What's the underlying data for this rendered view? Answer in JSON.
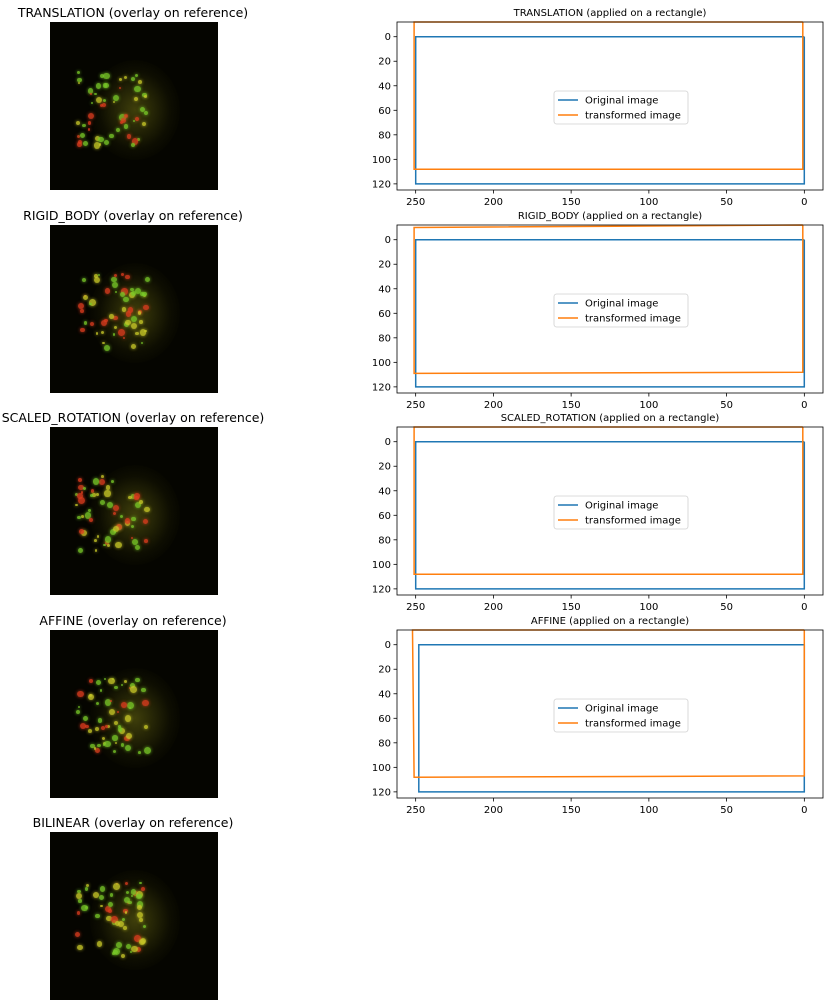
{
  "colors": {
    "original": "#1f77b4",
    "transformed": "#ff7f0e",
    "image_bg": "#050500"
  },
  "legend": {
    "original": "Original image",
    "transformed": "transformed image"
  },
  "image_panels": [
    {
      "title": "TRANSLATION (overlay on reference)"
    },
    {
      "title": "RIGID_BODY (overlay on reference)"
    },
    {
      "title": "SCALED_ROTATION (overlay on reference)"
    },
    {
      "title": "AFFINE (overlay on reference)"
    },
    {
      "title": "BILINEAR (overlay on reference)"
    }
  ],
  "chart_data": [
    {
      "type": "line",
      "title": "TRANSLATION (applied on a rectangle)",
      "x_inverted": true,
      "y_inverted": true,
      "xlim": [
        262,
        -12
      ],
      "ylim": [
        125,
        -12
      ],
      "xticks": [
        250,
        200,
        150,
        100,
        50,
        0
      ],
      "yticks": [
        0,
        20,
        40,
        60,
        80,
        100,
        120
      ],
      "legend_position": "center",
      "series": [
        {
          "name": "Original image",
          "points": [
            [
              0,
              0
            ],
            [
              250,
              0
            ],
            [
              250,
              120
            ],
            [
              0,
              120
            ],
            [
              0,
              0
            ]
          ]
        },
        {
          "name": "transformed image",
          "points": [
            [
              1,
              -12
            ],
            [
              251,
              -12
            ],
            [
              251,
              108
            ],
            [
              1,
              108
            ],
            [
              1,
              -12
            ]
          ]
        }
      ]
    },
    {
      "type": "line",
      "title": "RIGID_BODY (applied on a rectangle)",
      "x_inverted": true,
      "y_inverted": true,
      "xlim": [
        262,
        -12
      ],
      "ylim": [
        125,
        -12
      ],
      "xticks": [
        250,
        200,
        150,
        100,
        50,
        0
      ],
      "yticks": [
        0,
        20,
        40,
        60,
        80,
        100,
        120
      ],
      "legend_position": "center",
      "series": [
        {
          "name": "Original image",
          "points": [
            [
              0,
              0
            ],
            [
              250,
              0
            ],
            [
              250,
              120
            ],
            [
              0,
              120
            ],
            [
              0,
              0
            ]
          ]
        },
        {
          "name": "transformed image",
          "points": [
            [
              1,
              -12
            ],
            [
              251,
              -10
            ],
            [
              251,
              109
            ],
            [
              1,
              108
            ],
            [
              1,
              -12
            ]
          ]
        }
      ]
    },
    {
      "type": "line",
      "title": "SCALED_ROTATION (applied on a rectangle)",
      "x_inverted": true,
      "y_inverted": true,
      "xlim": [
        262,
        -12
      ],
      "ylim": [
        125,
        -12
      ],
      "xticks": [
        250,
        200,
        150,
        100,
        50,
        0
      ],
      "yticks": [
        0,
        20,
        40,
        60,
        80,
        100,
        120
      ],
      "legend_position": "center",
      "series": [
        {
          "name": "Original image",
          "points": [
            [
              0,
              0
            ],
            [
              250,
              0
            ],
            [
              250,
              120
            ],
            [
              0,
              120
            ],
            [
              0,
              0
            ]
          ]
        },
        {
          "name": "transformed image",
          "points": [
            [
              1,
              -12
            ],
            [
              251,
              -12
            ],
            [
              251,
              108
            ],
            [
              1,
              108
            ],
            [
              1,
              -12
            ]
          ]
        }
      ]
    },
    {
      "type": "line",
      "title": "AFFINE (applied on a rectangle)",
      "x_inverted": true,
      "y_inverted": true,
      "xlim": [
        262,
        -12
      ],
      "ylim": [
        125,
        -12
      ],
      "xticks": [
        250,
        200,
        150,
        100,
        50,
        0
      ],
      "yticks": [
        0,
        20,
        40,
        60,
        80,
        100,
        120
      ],
      "legend_position": "center",
      "series": [
        {
          "name": "Original image",
          "points": [
            [
              0,
              0
            ],
            [
              248,
              0
            ],
            [
              248,
              120
            ],
            [
              0,
              120
            ],
            [
              0,
              0
            ]
          ]
        },
        {
          "name": "transformed image",
          "points": [
            [
              0,
              -12
            ],
            [
              252,
              -12
            ],
            [
              251,
              108
            ],
            [
              0,
              107
            ],
            [
              0,
              -12
            ]
          ]
        }
      ]
    }
  ]
}
